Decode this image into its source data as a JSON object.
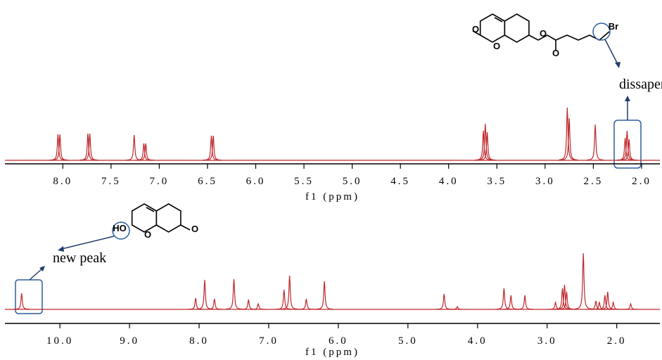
{
  "chart_data": [
    {
      "type": "spectrum",
      "x_label": "f1 (ppm)",
      "color": "#c0282c",
      "xlim": [
        8.6,
        1.81
      ],
      "ylim": [
        0,
        100
      ],
      "xticks": [
        {
          "value": 8.0,
          "label": "8.0"
        },
        {
          "value": 7.5,
          "label": "7.5"
        },
        {
          "value": 7.0,
          "label": "7.0"
        },
        {
          "value": 6.5,
          "label": "6.5"
        },
        {
          "value": 6.0,
          "label": "6.0"
        },
        {
          "value": 5.5,
          "label": "5.5"
        },
        {
          "value": 5.0,
          "label": "5.0"
        },
        {
          "value": 4.5,
          "label": "4.5"
        },
        {
          "value": 4.0,
          "label": "4.0"
        },
        {
          "value": 3.5,
          "label": "3.5"
        },
        {
          "value": 3.0,
          "label": "3.0"
        },
        {
          "value": 2.5,
          "label": "2.5"
        },
        {
          "value": 2.0,
          "label": "2.0"
        }
      ],
      "x": [
        8.05,
        8.03,
        7.74,
        7.72,
        7.26,
        7.16,
        7.14,
        6.46,
        6.44,
        3.64,
        3.62,
        3.6,
        2.77,
        2.75,
        2.48,
        2.17,
        2.15,
        2.13
      ],
      "values": [
        37,
        37,
        38,
        38,
        36,
        24,
        24,
        35,
        35,
        42,
        52,
        40,
        75,
        60,
        51,
        32,
        42,
        30
      ],
      "annotation": "dissaper",
      "atom_labels": [
        "O",
        "O",
        "O",
        "O",
        "Br"
      ]
    },
    {
      "type": "spectrum",
      "x_label": "f1 (ppm)",
      "color": "#c0282c",
      "xlim": [
        10.79,
        1.38
      ],
      "ylim": [
        0,
        100
      ],
      "xticks": [
        {
          "value": 10.0,
          "label": "10.0"
        },
        {
          "value": 9.0,
          "label": "9.0"
        },
        {
          "value": 8.0,
          "label": "8.0"
        },
        {
          "value": 7.0,
          "label": "7.0"
        },
        {
          "value": 6.0,
          "label": "6.0"
        },
        {
          "value": 5.0,
          "label": "5.0"
        },
        {
          "value": 4.0,
          "label": "4.0"
        },
        {
          "value": 3.0,
          "label": "3.0"
        },
        {
          "value": 2.0,
          "label": "2.0"
        }
      ],
      "x": [
        10.55,
        8.05,
        7.92,
        7.78,
        7.5,
        7.29,
        7.15,
        6.78,
        6.7,
        6.46,
        6.2,
        4.48,
        4.29,
        3.62,
        3.52,
        3.32,
        2.88,
        2.78,
        2.75,
        2.72,
        2.48,
        2.3,
        2.25,
        2.17,
        2.13,
        2.05,
        1.8
      ],
      "values": [
        23,
        16,
        42,
        15,
        43,
        14,
        8,
        28,
        48,
        15,
        40,
        22,
        4,
        30,
        20,
        20,
        10,
        30,
        35,
        25,
        80,
        12,
        10,
        20,
        25,
        10,
        8
      ],
      "annotation": "new peak",
      "atom_labels": [
        "HO",
        "O",
        "O"
      ]
    }
  ]
}
